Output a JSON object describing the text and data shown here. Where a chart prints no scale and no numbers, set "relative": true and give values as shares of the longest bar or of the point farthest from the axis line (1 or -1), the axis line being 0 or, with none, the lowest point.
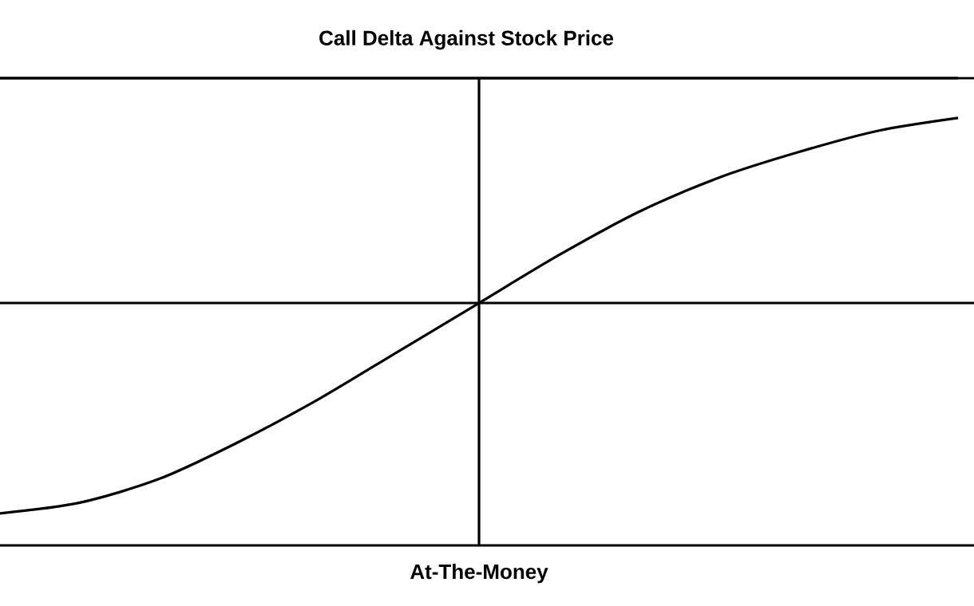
{
  "chart_data": {
    "type": "line",
    "title": "Call Delta Against Stock Price",
    "relative": true,
    "color": "#000000",
    "marker": "none",
    "line_style": "solid",
    "xlabel": "At-The-Money",
    "categories": [
      null,
      null,
      null,
      null,
      null,
      null,
      null,
      null,
      null,
      null,
      null,
      null,
      null
    ],
    "values": [
      0.075,
      0.1,
      0.156,
      0.243,
      0.343,
      0.455,
      0.567,
      0.679,
      0.78,
      0.86,
      0.92,
      0.97,
      1.0
    ],
    "ref_lines": [
      {
        "axis": "y",
        "value": 0.567
      },
      {
        "axis": "y",
        "value": 1.093
      }
    ]
  }
}
